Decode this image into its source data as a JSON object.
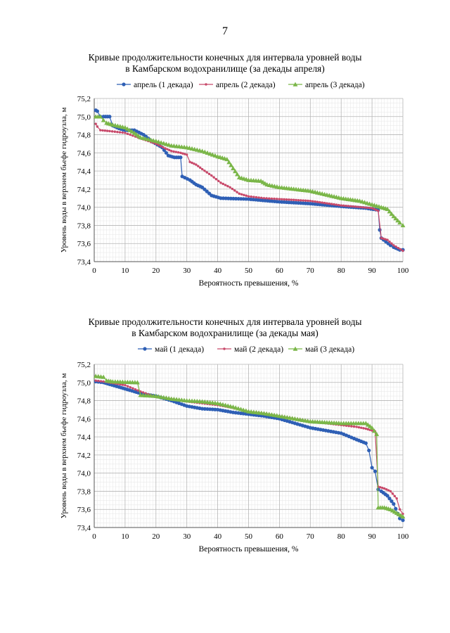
{
  "page": {
    "number": "7"
  },
  "charts": [
    {
      "title_line1": "Кривые продолжительности конечных для интервала уровней воды",
      "title_line2": "в Камбарском водохранилище (за декады апреля)",
      "xlabel": "Вероятность превышения, %",
      "ylabel": "Уровень воды  в верхнем бьефе гидроузла, м",
      "legend": [
        {
          "label": "апрель (1 декада)",
          "color": "#2e5fb5",
          "marker": "circle"
        },
        {
          "label": "апрель (2 декада)",
          "color": "#c8496a",
          "marker": "dot"
        },
        {
          "label": "апрель (3 декада)",
          "color": "#7ab648",
          "marker": "triangle"
        }
      ],
      "yticks": [
        "73,4",
        "73,6",
        "73,8",
        "74,0",
        "74,2",
        "74,4",
        "74,6",
        "74,8",
        "75,0",
        "75,2"
      ],
      "xticks": [
        "0",
        "10",
        "20",
        "30",
        "40",
        "50",
        "60",
        "70",
        "80",
        "90",
        "100"
      ]
    },
    {
      "title_line1": "Кривые продолжительности конечных для интервала уровней воды",
      "title_line2": "в Камбарском водохранилище (за декады мая)",
      "xlabel": "Вероятность превышения, %",
      "ylabel": "Уровень воды  в верхнем бьефе гидроузла, м",
      "legend": [
        {
          "label": "май (1 декада)",
          "color": "#2e5fb5",
          "marker": "circle"
        },
        {
          "label": "май (2 декада)",
          "color": "#c8496a",
          "marker": "dot"
        },
        {
          "label": "май (3 декада)",
          "color": "#7ab648",
          "marker": "triangle"
        }
      ],
      "yticks": [
        "73,4",
        "73,6",
        "73,8",
        "74,0",
        "74,2",
        "74,4",
        "74,6",
        "74,8",
        "75,0",
        "75,2"
      ],
      "xticks": [
        "0",
        "10",
        "20",
        "30",
        "40",
        "50",
        "60",
        "70",
        "80",
        "90",
        "100"
      ]
    }
  ],
  "chart_data": [
    {
      "type": "line",
      "title": "Кривые продолжительности конечных для интервала уровней воды в Камбарском водохранилище (за декады апреля)",
      "xlabel": "Вероятность превышения, %",
      "ylabel": "Уровень воды  в верхнем бьефе гидроузла, м",
      "xlim": [
        0,
        100
      ],
      "ylim": [
        73.4,
        75.2
      ],
      "grid": true,
      "legend_position": "top",
      "series": [
        {
          "name": "апрель (1 декада)",
          "color": "#2e5fb5",
          "marker": "circle",
          "points": [
            [
              0.5,
              75.07
            ],
            [
              1,
              75.06
            ],
            [
              2,
              75.0
            ],
            [
              3,
              75.0
            ],
            [
              5,
              75.0
            ],
            [
              6,
              74.9
            ],
            [
              8,
              74.87
            ],
            [
              10,
              74.85
            ],
            [
              13,
              74.85
            ],
            [
              16,
              74.8
            ],
            [
              19,
              74.72
            ],
            [
              22,
              74.66
            ],
            [
              24,
              74.57
            ],
            [
              26,
              74.55
            ],
            [
              28,
              74.55
            ],
            [
              28.5,
              74.34
            ],
            [
              31,
              74.3
            ],
            [
              33,
              74.25
            ],
            [
              35,
              74.22
            ],
            [
              38,
              74.13
            ],
            [
              41,
              74.1
            ],
            [
              50,
              74.09
            ],
            [
              60,
              74.06
            ],
            [
              70,
              74.04
            ],
            [
              80,
              74.01
            ],
            [
              88,
              73.99
            ],
            [
              92,
              73.97
            ],
            [
              92.5,
              73.75
            ],
            [
              93,
              73.66
            ],
            [
              96,
              73.58
            ],
            [
              97,
              73.56
            ],
            [
              99,
              73.53
            ],
            [
              100,
              73.53
            ]
          ]
        },
        {
          "name": "апрель (2 декада)",
          "color": "#c8496a",
          "marker": "dot",
          "points": [
            [
              0.5,
              74.92
            ],
            [
              1,
              74.89
            ],
            [
              2,
              74.85
            ],
            [
              5,
              74.84
            ],
            [
              10,
              74.82
            ],
            [
              15,
              74.76
            ],
            [
              20,
              74.7
            ],
            [
              23,
              74.65
            ],
            [
              25,
              74.62
            ],
            [
              28,
              74.6
            ],
            [
              30,
              74.58
            ],
            [
              31,
              74.5
            ],
            [
              33,
              74.47
            ],
            [
              35,
              74.42
            ],
            [
              38,
              74.35
            ],
            [
              41,
              74.27
            ],
            [
              44,
              74.22
            ],
            [
              47,
              74.15
            ],
            [
              50,
              74.12
            ],
            [
              55,
              74.1
            ],
            [
              60,
              74.09
            ],
            [
              70,
              74.07
            ],
            [
              80,
              74.02
            ],
            [
              90,
              73.99
            ],
            [
              92,
              73.96
            ],
            [
              93,
              73.66
            ],
            [
              95,
              73.64
            ],
            [
              97,
              73.58
            ],
            [
              100,
              73.52
            ]
          ]
        },
        {
          "name": "апрель (3 декада)",
          "color": "#7ab648",
          "marker": "triangle",
          "points": [
            [
              0.5,
              75.0
            ],
            [
              2,
              75.0
            ],
            [
              3,
              74.96
            ],
            [
              4,
              74.93
            ],
            [
              6,
              74.91
            ],
            [
              10,
              74.88
            ],
            [
              13,
              74.82
            ],
            [
              15,
              74.77
            ],
            [
              20,
              74.73
            ],
            [
              25,
              74.68
            ],
            [
              30,
              74.66
            ],
            [
              35,
              74.62
            ],
            [
              40,
              74.56
            ],
            [
              43,
              74.53
            ],
            [
              45,
              74.43
            ],
            [
              47,
              74.33
            ],
            [
              50,
              74.3
            ],
            [
              54,
              74.29
            ],
            [
              56,
              74.25
            ],
            [
              60,
              74.22
            ],
            [
              70,
              74.18
            ],
            [
              80,
              74.1
            ],
            [
              86,
              74.07
            ],
            [
              90,
              74.03
            ],
            [
              93,
              74.0
            ],
            [
              95,
              73.98
            ],
            [
              97,
              73.9
            ],
            [
              99,
              73.83
            ],
            [
              100,
              73.8
            ]
          ]
        }
      ]
    },
    {
      "type": "line",
      "title": "Кривые продолжительности конечных для интервала уровней воды в Камбарском водохранилище (за декады мая)",
      "xlabel": "Вероятность превышения, %",
      "ylabel": "Уровень воды  в верхнем бьефе гидроузла, м",
      "xlim": [
        0,
        100
      ],
      "ylim": [
        73.4,
        75.2
      ],
      "grid": true,
      "legend_position": "top",
      "series": [
        {
          "name": "май (1 декада)",
          "color": "#2e5fb5",
          "marker": "circle",
          "points": [
            [
              0.5,
              75.01
            ],
            [
              3,
              75.0
            ],
            [
              5,
              74.98
            ],
            [
              8,
              74.95
            ],
            [
              10,
              74.93
            ],
            [
              13,
              74.9
            ],
            [
              15,
              74.88
            ],
            [
              20,
              74.85
            ],
            [
              25,
              74.8
            ],
            [
              30,
              74.74
            ],
            [
              35,
              74.71
            ],
            [
              40,
              74.7
            ],
            [
              45,
              74.67
            ],
            [
              50,
              74.65
            ],
            [
              55,
              74.63
            ],
            [
              60,
              74.6
            ],
            [
              65,
              74.55
            ],
            [
              70,
              74.5
            ],
            [
              75,
              74.47
            ],
            [
              80,
              74.44
            ],
            [
              85,
              74.37
            ],
            [
              88,
              74.33
            ],
            [
              89,
              74.25
            ],
            [
              90,
              74.06
            ],
            [
              91,
              74.02
            ],
            [
              92,
              73.82
            ],
            [
              93,
              73.8
            ],
            [
              95,
              73.75
            ],
            [
              97,
              73.66
            ],
            [
              99,
              73.5
            ],
            [
              100,
              73.48
            ]
          ]
        },
        {
          "name": "май (2 декада)",
          "color": "#c8496a",
          "marker": "dot",
          "points": [
            [
              0.5,
              75.02
            ],
            [
              3,
              75.01
            ],
            [
              10,
              74.97
            ],
            [
              15,
              74.9
            ],
            [
              20,
              74.84
            ],
            [
              25,
              74.82
            ],
            [
              30,
              74.79
            ],
            [
              35,
              74.77
            ],
            [
              40,
              74.75
            ],
            [
              45,
              74.72
            ],
            [
              50,
              74.68
            ],
            [
              55,
              74.66
            ],
            [
              60,
              74.63
            ],
            [
              65,
              74.6
            ],
            [
              70,
              74.57
            ],
            [
              75,
              74.55
            ],
            [
              80,
              74.53
            ],
            [
              85,
              74.51
            ],
            [
              88,
              74.49
            ],
            [
              90,
              74.47
            ],
            [
              91,
              74.46
            ],
            [
              92,
              73.85
            ],
            [
              94,
              73.83
            ],
            [
              96,
              73.8
            ],
            [
              98,
              73.72
            ],
            [
              99,
              73.6
            ],
            [
              100,
              73.55
            ]
          ]
        },
        {
          "name": "май (3 декада)",
          "color": "#7ab648",
          "marker": "triangle",
          "points": [
            [
              0.5,
              75.07
            ],
            [
              3,
              75.06
            ],
            [
              4,
              75.02
            ],
            [
              6,
              75.01
            ],
            [
              14,
              75.0
            ],
            [
              15,
              74.86
            ],
            [
              20,
              74.85
            ],
            [
              25,
              74.82
            ],
            [
              30,
              74.8
            ],
            [
              35,
              74.79
            ],
            [
              40,
              74.77
            ],
            [
              45,
              74.73
            ],
            [
              50,
              74.68
            ],
            [
              55,
              74.66
            ],
            [
              60,
              74.63
            ],
            [
              65,
              74.6
            ],
            [
              70,
              74.57
            ],
            [
              80,
              74.55
            ],
            [
              88,
              74.55
            ],
            [
              90,
              74.5
            ],
            [
              91.5,
              74.43
            ],
            [
              92,
              73.62
            ],
            [
              94,
              73.62
            ],
            [
              96,
              73.6
            ],
            [
              98,
              73.56
            ],
            [
              100,
              73.52
            ]
          ]
        }
      ]
    }
  ]
}
